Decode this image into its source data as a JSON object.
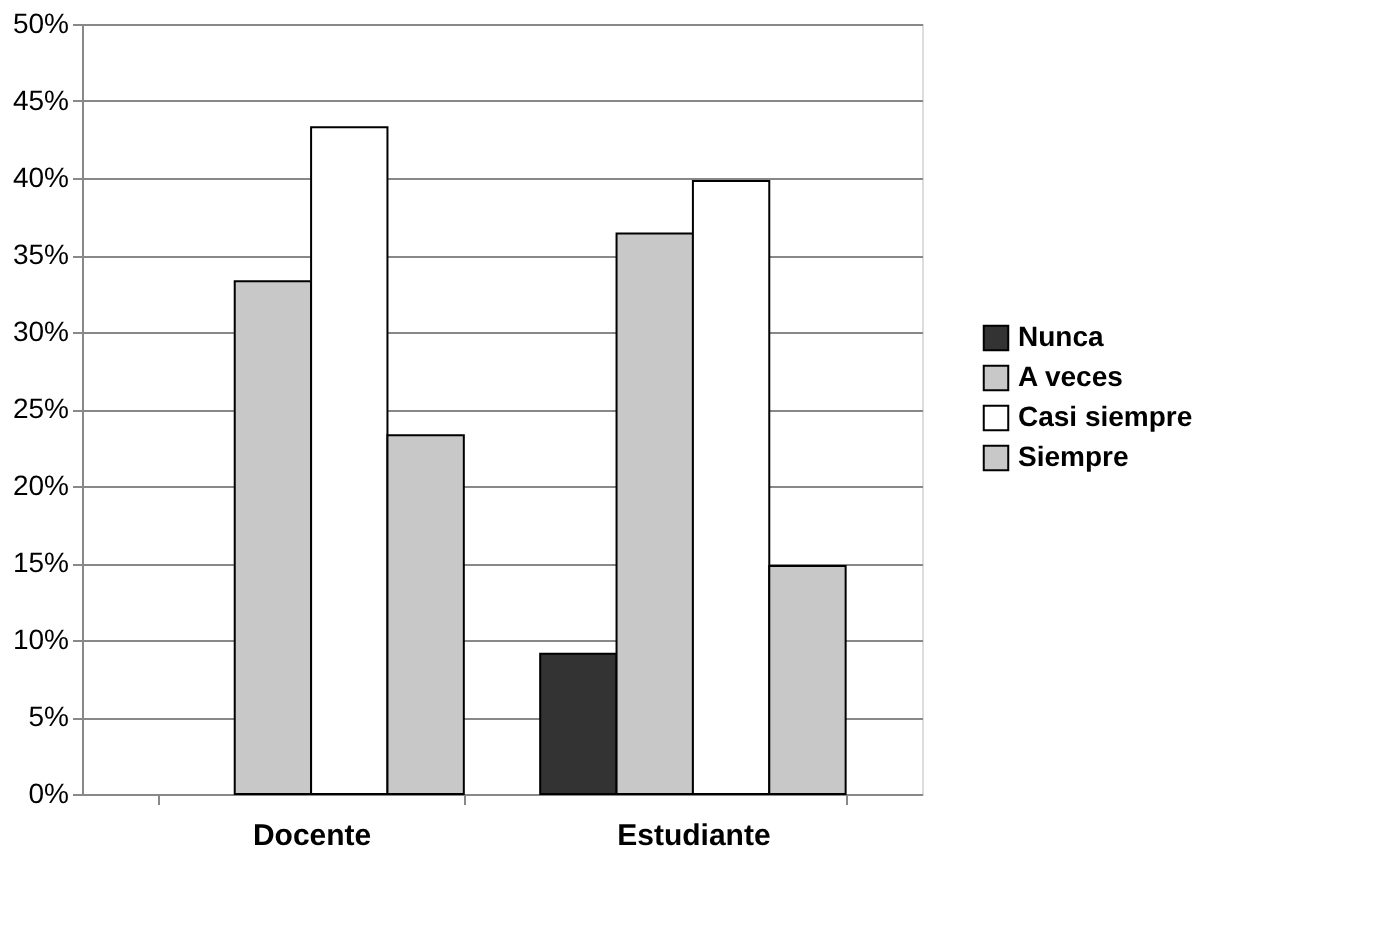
{
  "chart_data": {
    "type": "bar",
    "categories": [
      "Docente",
      "Estudiante"
    ],
    "series": [
      {
        "name": "Nunca",
        "color": "#333333",
        "values": [
          0,
          9.1
        ]
      },
      {
        "name": "A veces",
        "color": "#c8c8c8",
        "values": [
          33.3,
          36.4
        ]
      },
      {
        "name": "Casi siempre",
        "color": "#ffffff",
        "values": [
          43.3,
          39.8
        ]
      },
      {
        "name": "Siempre",
        "color": "#c8c8c8",
        "values": [
          23.3,
          14.8
        ]
      }
    ],
    "ylim": [
      0,
      50
    ],
    "yticks": [
      {
        "value": 0,
        "label": "0%"
      },
      {
        "value": 5,
        "label": "5%"
      },
      {
        "value": 10,
        "label": "10%"
      },
      {
        "value": 15,
        "label": "15%"
      },
      {
        "value": 20,
        "label": "20%"
      },
      {
        "value": 25,
        "label": "25%"
      },
      {
        "value": 30,
        "label": "30%"
      },
      {
        "value": 35,
        "label": "35%"
      },
      {
        "value": 40,
        "label": "40%"
      },
      {
        "value": 45,
        "label": "45%"
      },
      {
        "value": 50,
        "label": "50%"
      }
    ],
    "grid": "y",
    "legend": "right"
  }
}
